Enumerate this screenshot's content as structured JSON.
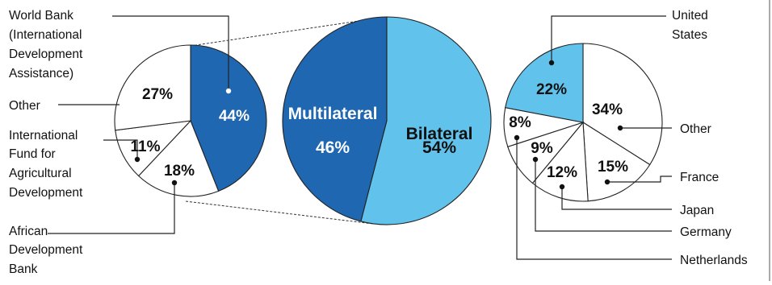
{
  "colors": {
    "multilateral": "#1f67b1",
    "bilateral": "#61c3ec",
    "other": "#ffffff",
    "outline": "#222222"
  },
  "chart_data": [
    {
      "type": "pie",
      "id": "center",
      "slices": [
        {
          "key": "multilateral",
          "name": "Multilateral",
          "value": 46,
          "label": "46%"
        },
        {
          "key": "bilateral",
          "name": "Bilateral",
          "value": 54,
          "label": "54%"
        }
      ]
    },
    {
      "type": "pie",
      "id": "multilateral-breakdown",
      "slices": [
        {
          "key": "world-bank",
          "name": "World Bank (International Development Assistance)",
          "value": 44,
          "label": "44%"
        },
        {
          "key": "african-dev-bank",
          "name": "African Development Bank",
          "value": 18,
          "label": "18%"
        },
        {
          "key": "ifad",
          "name": "International Fund for Agricultural Development",
          "value": 11,
          "label": "11%"
        },
        {
          "key": "other",
          "name": "Other",
          "value": 27,
          "label": "27%"
        }
      ]
    },
    {
      "type": "pie",
      "id": "bilateral-breakdown",
      "slices": [
        {
          "key": "other",
          "name": "Other",
          "value": 34,
          "label": "34%"
        },
        {
          "key": "france",
          "name": "France",
          "value": 15,
          "label": "15%"
        },
        {
          "key": "japan",
          "name": "Japan",
          "value": 12,
          "label": "12%"
        },
        {
          "key": "germany",
          "name": "Germany",
          "value": 9,
          "label": "9%"
        },
        {
          "key": "netherlands",
          "name": "Netherlands",
          "value": 8,
          "label": "8%"
        },
        {
          "key": "united-states",
          "name": "United States",
          "value": 22,
          "label": "22%"
        }
      ]
    }
  ],
  "labels": {
    "world_bank": [
      "World Bank",
      "(International",
      "Development",
      "Assistance)"
    ],
    "other_left": "Other",
    "ifad": [
      "International",
      "Fund for",
      "Agricultural",
      "Development"
    ],
    "african_dev_bank": [
      "African",
      "Development",
      "Bank"
    ],
    "united_states": [
      "United",
      "States"
    ],
    "other_right": "Other",
    "france": "France",
    "japan": "Japan",
    "germany": "Germany",
    "netherlands": "Netherlands"
  }
}
